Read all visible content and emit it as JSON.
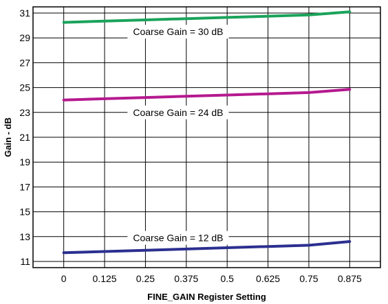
{
  "chart_data": {
    "type": "line",
    "title": "",
    "xlabel": "FINE_GAIN Register Setting",
    "ylabel": "Gain - dB",
    "xlim": [
      -0.094,
      0.969
    ],
    "ylim": [
      10.5,
      31.5
    ],
    "x_ticks": [
      0,
      0.125,
      0.25,
      0.375,
      0.5,
      0.625,
      0.75,
      0.875
    ],
    "x_tick_labels": [
      "0",
      "0.125",
      "0.25",
      "0.375",
      "0.5",
      "0.625",
      "0.75",
      "0.875"
    ],
    "y_ticks": [
      11,
      13,
      15,
      17,
      19,
      21,
      23,
      25,
      27,
      29,
      31
    ],
    "y_tick_labels": [
      "11",
      "13",
      "15",
      "17",
      "19",
      "21",
      "23",
      "25",
      "27",
      "29",
      "31"
    ],
    "grid": true,
    "legend": "none",
    "series": [
      {
        "color": "#1aa35a",
        "x": [
          0,
          0.125,
          0.25,
          0.375,
          0.5,
          0.625,
          0.75,
          0.875
        ],
        "y": [
          30.25,
          30.35,
          30.45,
          30.55,
          30.65,
          30.75,
          30.85,
          31.1
        ]
      },
      {
        "color": "#b5198f",
        "x": [
          0,
          0.125,
          0.25,
          0.375,
          0.5,
          0.625,
          0.75,
          0.875
        ],
        "y": [
          24.0,
          24.1,
          24.2,
          24.3,
          24.4,
          24.5,
          24.6,
          24.85
        ]
      },
      {
        "color": "#2b2f8f",
        "x": [
          0,
          0.125,
          0.25,
          0.375,
          0.5,
          0.625,
          0.75,
          0.875
        ],
        "y": [
          11.7,
          11.8,
          11.9,
          12.0,
          12.1,
          12.2,
          12.3,
          12.6
        ]
      }
    ],
    "annotations": [
      {
        "text": "Coarse Gain = 30 dB",
        "x": 0.35,
        "y": 29.5
      },
      {
        "text": "Coarse Gain = 24 dB",
        "x": 0.35,
        "y": 23.0
      },
      {
        "text": "Coarse Gain = 12 dB",
        "x": 0.35,
        "y": 12.9
      }
    ]
  }
}
